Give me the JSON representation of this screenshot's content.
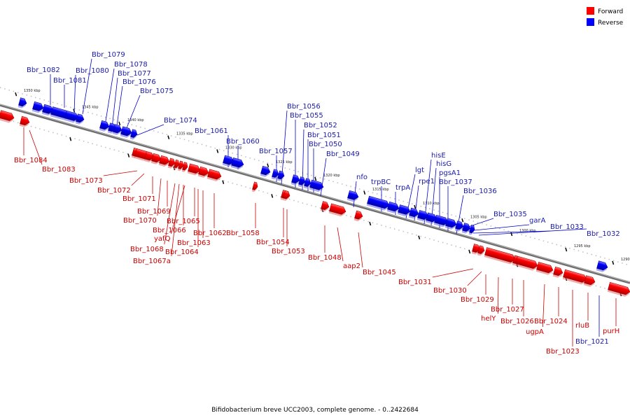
{
  "legend": {
    "forward": {
      "label": "Forward",
      "color": "#ff0000"
    },
    "reverse": {
      "label": "Reverse",
      "color": "#0000ff"
    }
  },
  "caption": "Bifidobacterium breve UCC2003, complete genome. - 0..2422684",
  "axis_ticks": [
    "1350 kbp",
    "1345 kbp",
    "1340 kbp",
    "1335 kbp",
    "1330 kbp",
    "1325 kbp",
    "1320 kbp",
    "1315 kbp",
    "1310 kbp",
    "1305 kbp",
    "1300 kbp",
    "1295 kbp",
    "1290 kbp"
  ],
  "genes": [
    {
      "name": "Bbr_1084",
      "strand": "forward"
    },
    {
      "name": "Bbr_1083",
      "strand": "forward"
    },
    {
      "name": "Bbr_1082",
      "strand": "reverse"
    },
    {
      "name": "Bbr_1081",
      "strand": "reverse"
    },
    {
      "name": "Bbr_1080",
      "strand": "reverse"
    },
    {
      "name": "Bbr_1079",
      "strand": "reverse"
    },
    {
      "name": "Bbr_1078",
      "strand": "reverse"
    },
    {
      "name": "Bbr_1077",
      "strand": "reverse"
    },
    {
      "name": "Bbr_1076",
      "strand": "reverse"
    },
    {
      "name": "Bbr_1075",
      "strand": "reverse"
    },
    {
      "name": "Bbr_1074",
      "strand": "reverse"
    },
    {
      "name": "Bbr_1073",
      "strand": "forward"
    },
    {
      "name": "Bbr_1072",
      "strand": "forward"
    },
    {
      "name": "Bbr_1071",
      "strand": "forward"
    },
    {
      "name": "Bbr_1070",
      "strand": "forward"
    },
    {
      "name": "Bbr_1069",
      "strand": "forward"
    },
    {
      "name": "Bbr_1068",
      "strand": "forward"
    },
    {
      "name": "Bbr_1067a",
      "strand": "forward"
    },
    {
      "name": "Bbr_1066",
      "strand": "forward"
    },
    {
      "name": "yafQ",
      "strand": "forward"
    },
    {
      "name": "Bbr_1065",
      "strand": "forward"
    },
    {
      "name": "Bbr_1064",
      "strand": "forward"
    },
    {
      "name": "Bbr_1063",
      "strand": "forward"
    },
    {
      "name": "Bbr_1062",
      "strand": "forward"
    },
    {
      "name": "Bbr_1061",
      "strand": "reverse"
    },
    {
      "name": "Bbr_1060",
      "strand": "reverse"
    },
    {
      "name": "Bbr_1058",
      "strand": "forward"
    },
    {
      "name": "Bbr_1057",
      "strand": "reverse"
    },
    {
      "name": "Bbr_1056",
      "strand": "reverse"
    },
    {
      "name": "Bbr_1055",
      "strand": "reverse"
    },
    {
      "name": "Bbr_1054",
      "strand": "forward"
    },
    {
      "name": "Bbr_1053",
      "strand": "forward"
    },
    {
      "name": "Bbr_1052",
      "strand": "reverse"
    },
    {
      "name": "Bbr_1051",
      "strand": "reverse"
    },
    {
      "name": "Bbr_1050",
      "strand": "reverse"
    },
    {
      "name": "Bbr_1049",
      "strand": "reverse"
    },
    {
      "name": "Bbr_1048",
      "strand": "forward"
    },
    {
      "name": "aap2",
      "strand": "forward"
    },
    {
      "name": "Bbr_1045",
      "strand": "forward"
    },
    {
      "name": "nfo",
      "strand": "reverse"
    },
    {
      "name": "trpBC",
      "strand": "reverse"
    },
    {
      "name": "trpA",
      "strand": "reverse"
    },
    {
      "name": "lgt",
      "strand": "reverse"
    },
    {
      "name": "rpe1",
      "strand": "reverse"
    },
    {
      "name": "hisE",
      "strand": "reverse"
    },
    {
      "name": "hisG",
      "strand": "reverse"
    },
    {
      "name": "pgsA1",
      "strand": "reverse"
    },
    {
      "name": "Bbr_1037",
      "strand": "reverse"
    },
    {
      "name": "Bbr_1036",
      "strand": "reverse"
    },
    {
      "name": "Bbr_1035",
      "strand": "reverse"
    },
    {
      "name": "garA",
      "strand": "reverse"
    },
    {
      "name": "Bbr_1033",
      "strand": "reverse"
    },
    {
      "name": "Bbr_1032",
      "strand": "reverse"
    },
    {
      "name": "Bbr_1031",
      "strand": "forward"
    },
    {
      "name": "Bbr_1030",
      "strand": "forward"
    },
    {
      "name": "Bbr_1029",
      "strand": "forward"
    },
    {
      "name": "helY",
      "strand": "forward"
    },
    {
      "name": "Bbr_1027",
      "strand": "forward"
    },
    {
      "name": "Bbr_1026",
      "strand": "forward"
    },
    {
      "name": "ugpA",
      "strand": "forward"
    },
    {
      "name": "Bbr_1024",
      "strand": "forward"
    },
    {
      "name": "Bbr_1023",
      "strand": "forward"
    },
    {
      "name": "rluB",
      "strand": "forward"
    },
    {
      "name": "Bbr_1021",
      "strand": "reverse"
    },
    {
      "name": "purH",
      "strand": "forward"
    }
  ]
}
